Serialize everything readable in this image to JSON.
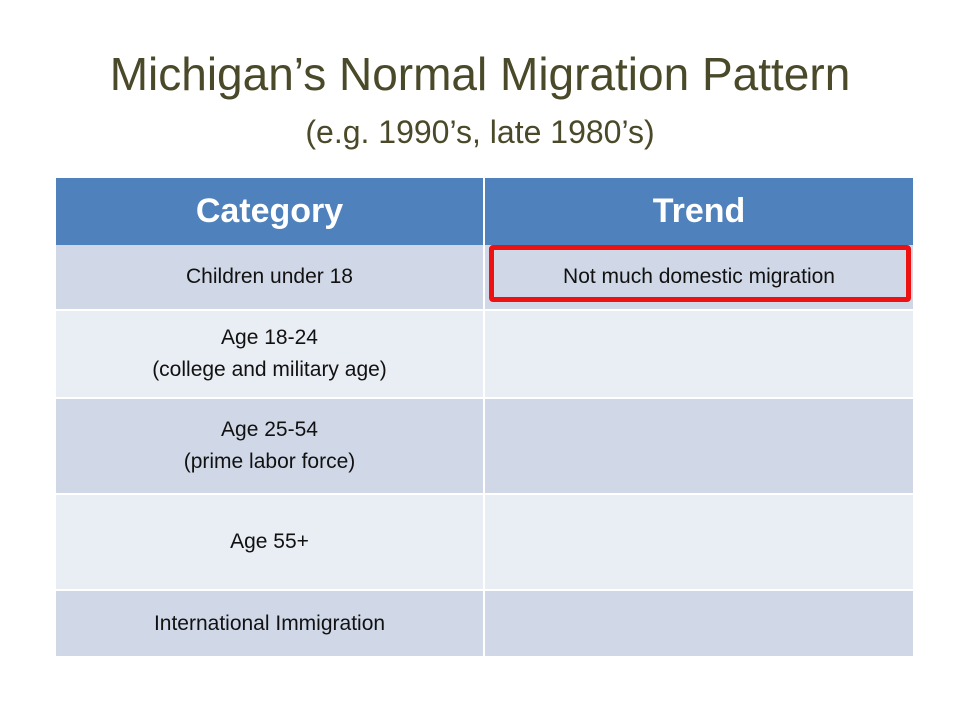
{
  "slide": {
    "title": "Michigan’s Normal Migration Pattern",
    "subtitle": "(e.g. 1990’s, late 1980’s)"
  },
  "table": {
    "headers": [
      "Category",
      "Trend"
    ],
    "rows": [
      {
        "category_line1": "Children under 18",
        "category_line2": "",
        "trend": "Not much domestic migration"
      },
      {
        "category_line1": "Age 18-24",
        "category_line2": "(college and military age)",
        "trend": ""
      },
      {
        "category_line1": "Age 25-54",
        "category_line2": "(prime labor force)",
        "trend": ""
      },
      {
        "category_line1": "Age 55+",
        "category_line2": "",
        "trend": ""
      },
      {
        "category_line1": "International Immigration",
        "category_line2": "",
        "trend": ""
      }
    ]
  },
  "colors": {
    "header_bg": "#4f81bd",
    "row_dark": "#d0d8e8",
    "row_light": "#e9edf4",
    "highlight_border": "#ee1111",
    "title_color": "#4a4a2a"
  }
}
